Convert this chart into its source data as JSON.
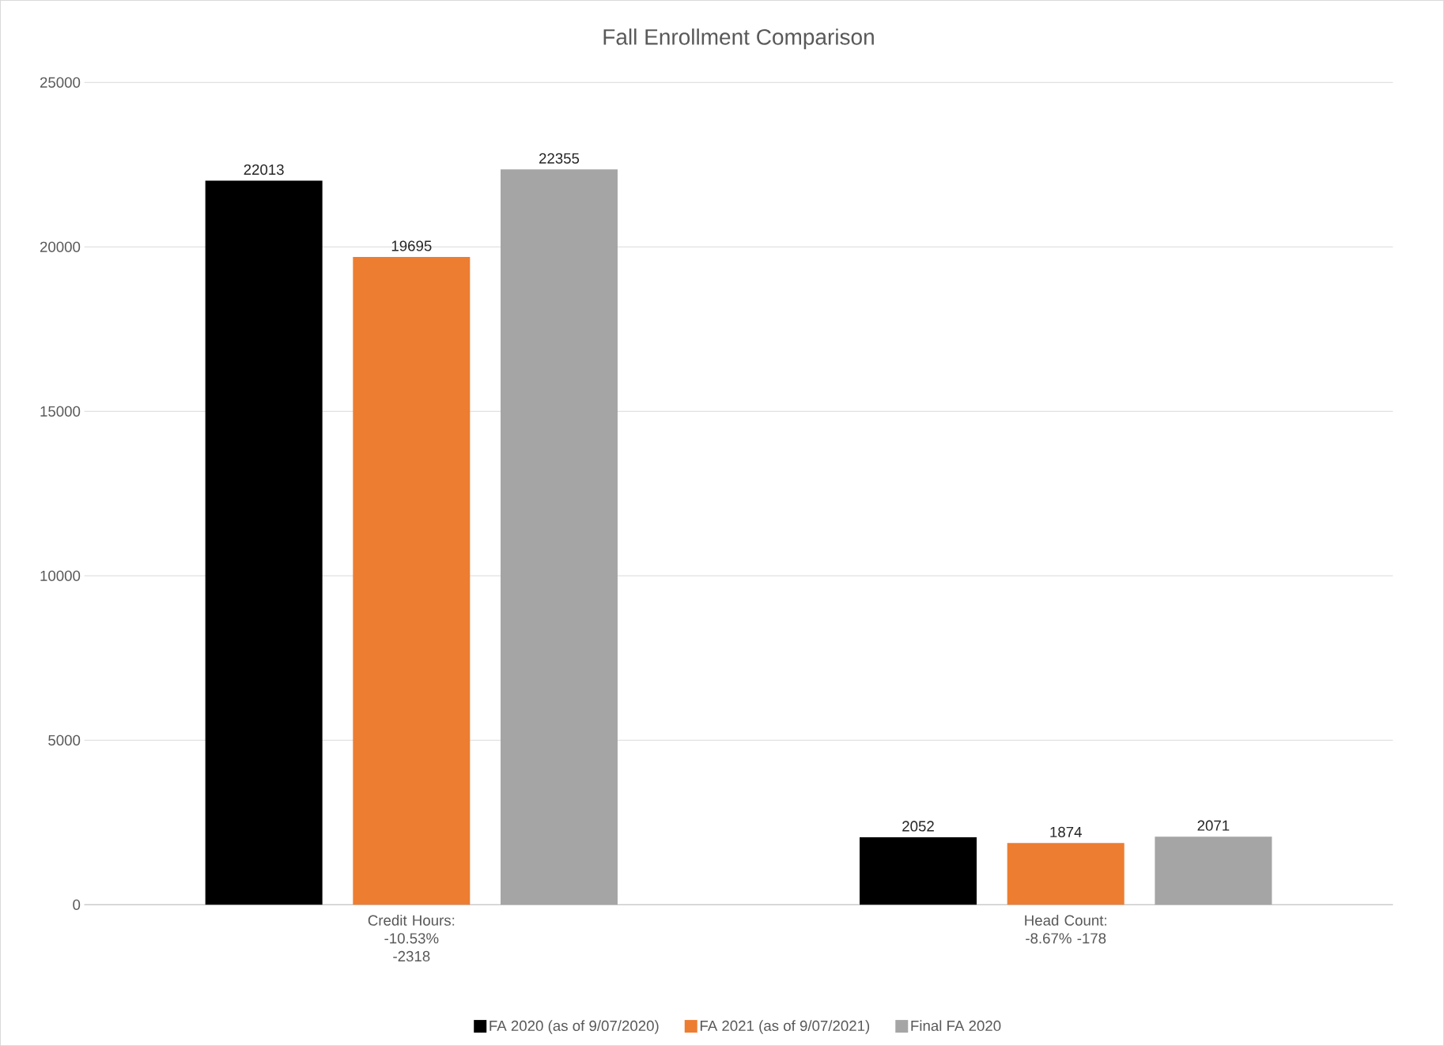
{
  "chart_data": {
    "type": "bar",
    "title": "Fall Enrollment Comparison",
    "categories": [
      "Credit Hours: -10.53% -2318",
      "Head Count: -8.67% -178"
    ],
    "series": [
      {
        "name": "FA 2020 (as of 9/07/2020)",
        "color": "#000000",
        "values": [
          22013,
          2052
        ]
      },
      {
        "name": "FA 2021 (as of 9/07/2021)",
        "color": "#ed7d31",
        "values": [
          19695,
          1874
        ]
      },
      {
        "name": "Final FA 2020",
        "color": "#a5a5a5",
        "values": [
          22355,
          2071
        ]
      }
    ],
    "ylim": [
      0,
      25000
    ],
    "yticks": [
      0,
      5000,
      10000,
      15000,
      20000,
      25000
    ],
    "grid": "y",
    "legend": "bottom",
    "data_labels": true
  }
}
